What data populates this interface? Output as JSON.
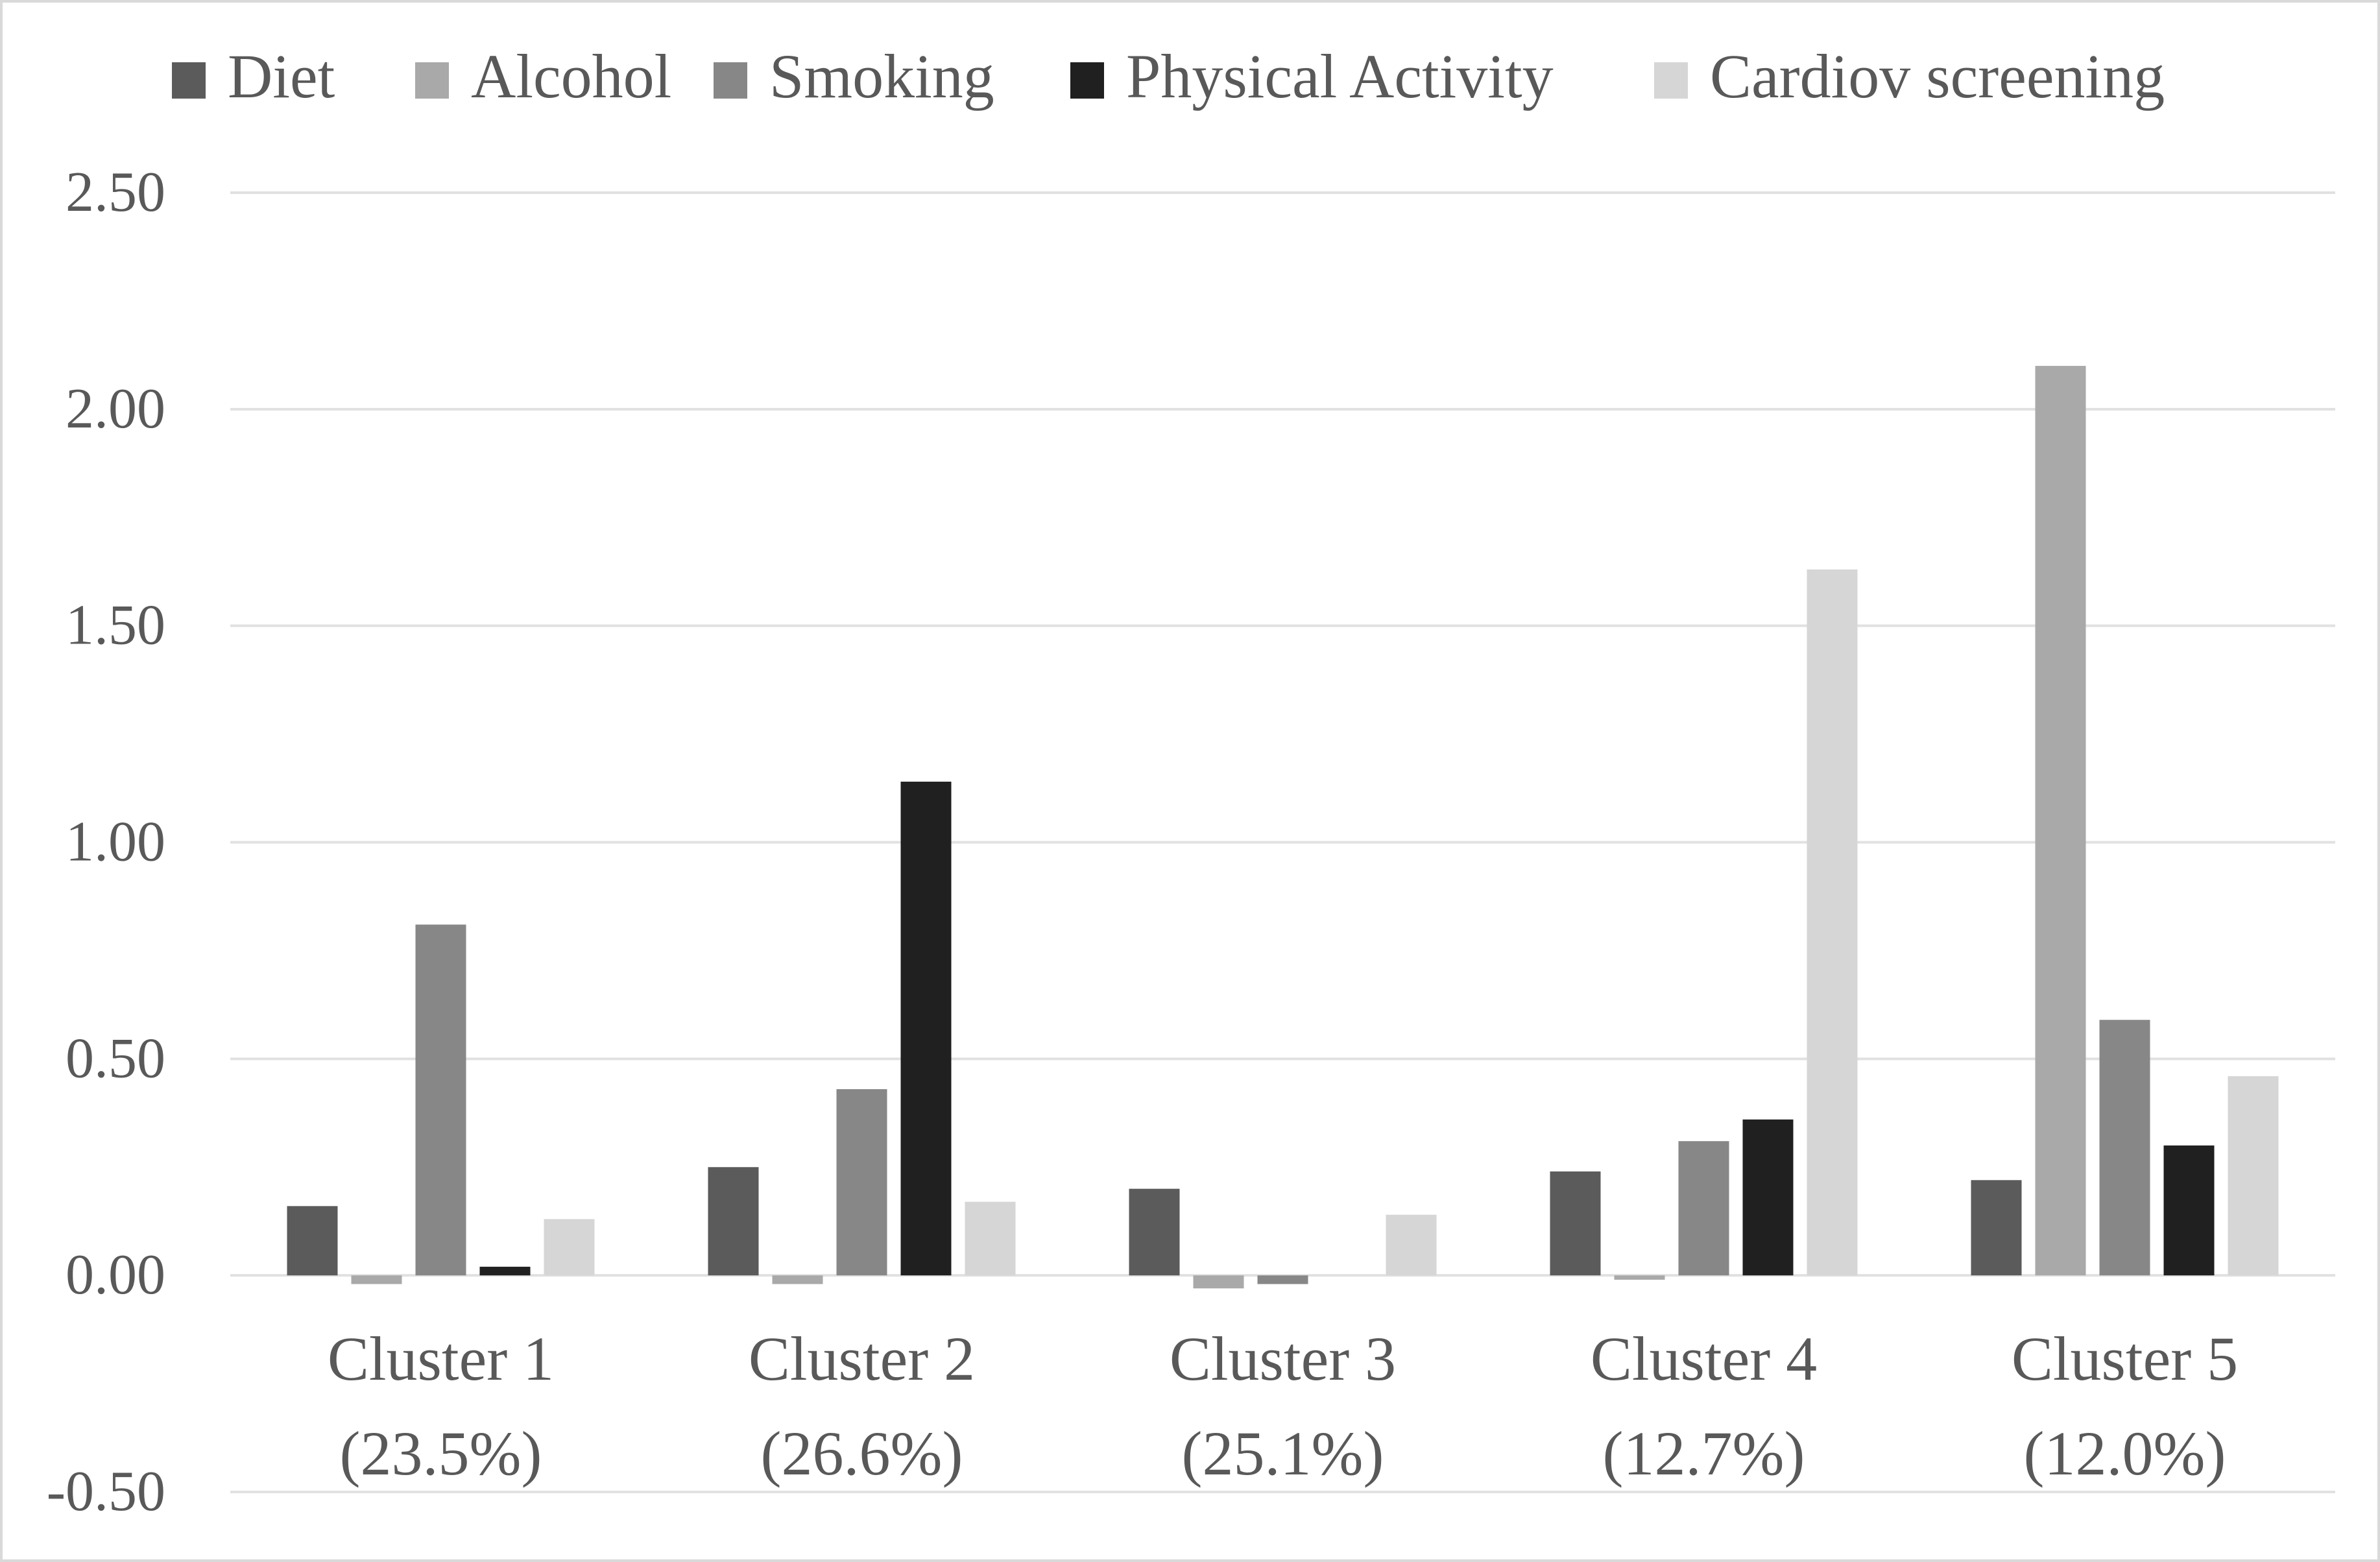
{
  "chart_data": {
    "type": "bar",
    "title": "",
    "xlabel": "",
    "ylabel": "",
    "ylim": [
      -0.5,
      2.5
    ],
    "yticks": [
      2.5,
      2.0,
      1.5,
      1.0,
      0.5,
      0.0,
      -0.5
    ],
    "ytick_labels": [
      "2.50",
      "2.00",
      "1.50",
      "1.00",
      "0.50",
      "0.00",
      "-0.50"
    ],
    "grid": true,
    "legend_position": "top",
    "categories": [
      {
        "name": "Cluster 1",
        "share": "(23.5%)"
      },
      {
        "name": "Cluster 2",
        "share": "(26.6%)"
      },
      {
        "name": "Cluster 3",
        "share": "(25.1%)"
      },
      {
        "name": "Cluster 4",
        "share": "(12.7%)"
      },
      {
        "name": "Cluster 5",
        "share": "(12.0%)"
      }
    ],
    "series": [
      {
        "name": "Diet",
        "color": "#5b5b5b",
        "values": [
          0.16,
          0.25,
          0.2,
          0.24,
          0.22
        ]
      },
      {
        "name": "Alcohol",
        "color": "#a9a9a9",
        "values": [
          -0.02,
          -0.02,
          -0.03,
          -0.01,
          2.1
        ]
      },
      {
        "name": "Smoking",
        "color": "#878787",
        "values": [
          0.81,
          0.43,
          -0.02,
          0.31,
          0.59
        ]
      },
      {
        "name": "Physical Activity",
        "color": "#202020",
        "values": [
          0.02,
          1.14,
          0.0,
          0.36,
          0.3
        ]
      },
      {
        "name": "Cardiov screening",
        "color": "#d6d6d6",
        "values": [
          0.13,
          0.17,
          0.14,
          1.63,
          0.46
        ]
      }
    ]
  },
  "colors": {
    "gridline": "#e1e1e1",
    "axis_text": "#595959",
    "frame": "#d9d9d9"
  }
}
